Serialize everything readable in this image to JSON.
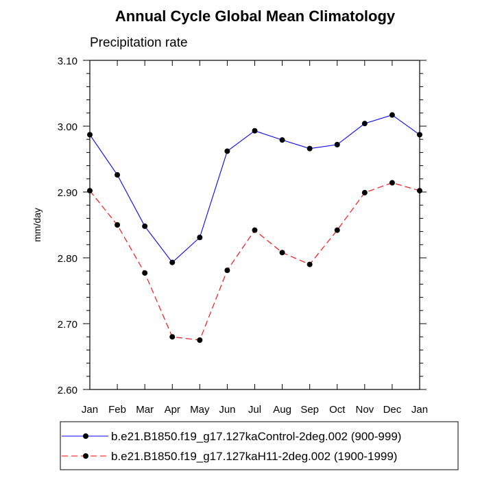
{
  "chart_data": {
    "type": "line",
    "title": "Annual Cycle Global Mean Climatology",
    "subtitle": "Precipitation rate",
    "xlabel": "",
    "ylabel": "mm/day",
    "ylim": [
      2.6,
      3.1
    ],
    "yticks": [
      "2.60",
      "2.70",
      "2.80",
      "2.90",
      "3.00",
      "3.10"
    ],
    "yticks_values": [
      2.6,
      2.7,
      2.8,
      2.9,
      3.0,
      3.1
    ],
    "categories": [
      "Jan",
      "Feb",
      "Mar",
      "Apr",
      "May",
      "Jun",
      "Jul",
      "Aug",
      "Sep",
      "Oct",
      "Nov",
      "Dec",
      "Jan"
    ],
    "series": [
      {
        "name": "b.e21.B1850.f19_g17.127kaControl-2deg.002 (900-999)",
        "color": "#0000ff",
        "dash": "solid",
        "values": [
          2.987,
          2.926,
          2.848,
          2.793,
          2.831,
          2.962,
          2.993,
          2.979,
          2.966,
          2.972,
          3.004,
          3.017,
          2.987
        ]
      },
      {
        "name": "b.e21.B1850.f19_g17.127kaH11-2deg.002 (1900-1999)",
        "color": "#ff0000",
        "dash": "dashed",
        "values": [
          2.902,
          2.85,
          2.777,
          2.68,
          2.675,
          2.781,
          2.842,
          2.808,
          2.79,
          2.842,
          2.899,
          2.914,
          2.902
        ]
      }
    ],
    "marker_color": "#000000",
    "grid": false,
    "legend_position": "bottom"
  }
}
